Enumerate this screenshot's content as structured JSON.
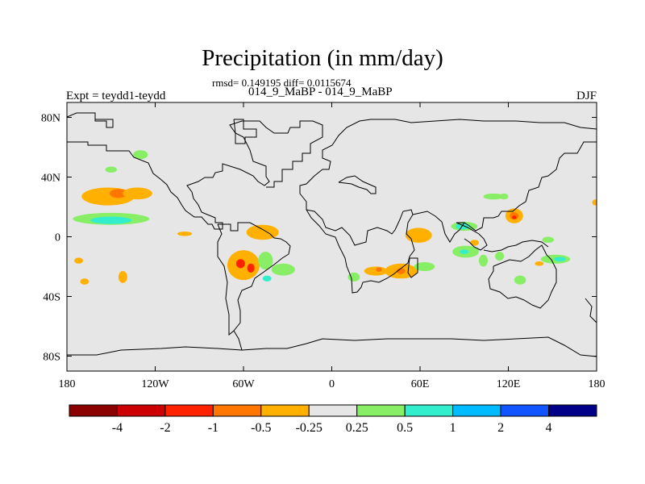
{
  "title": "Precipitation (in mm/day)",
  "stats": "rmsd= 0.149195 diff= 0.0115674",
  "subtitle": "014_9_MaBP - 014_9_MaBP",
  "left_label": "Expt = teydd1-teydd",
  "right_label": "DJF",
  "colors": {
    "background": "#e6e6e6",
    "coastline": "#000000"
  },
  "chart_data": {
    "type": "contour-map",
    "variable": "Precipitation difference",
    "units": "mm/day",
    "season": "DJF",
    "rmsd": 0.149195,
    "diff": 0.0115674,
    "x_range": [
      -180,
      180
    ],
    "y_range": [
      -90,
      90
    ],
    "x_ticks": [
      {
        "value": -180,
        "label": "180"
      },
      {
        "value": -120,
        "label": "120W"
      },
      {
        "value": -60,
        "label": "60W"
      },
      {
        "value": 0,
        "label": "0"
      },
      {
        "value": 60,
        "label": "60E"
      },
      {
        "value": 120,
        "label": "120E"
      },
      {
        "value": 180,
        "label": "180"
      }
    ],
    "y_ticks": [
      {
        "value": 80,
        "label": "80N"
      },
      {
        "value": 40,
        "label": "40N"
      },
      {
        "value": 0,
        "label": "0"
      },
      {
        "value": -40,
        "label": "40S"
      },
      {
        "value": -80,
        "label": "80S"
      }
    ],
    "colorbar": {
      "colors": [
        "#8b0000",
        "#cc0000",
        "#ff2200",
        "#ff7700",
        "#ffb000",
        "#e6e6e6",
        "#88ee66",
        "#33eecc",
        "#00bbff",
        "#1155ff",
        "#000088"
      ],
      "labels": [
        "-4",
        "-2",
        "-1",
        "-0.5",
        "-0.25",
        "0.25",
        "0.5",
        "1",
        "2",
        "4"
      ]
    },
    "regions": [
      {
        "level": "-0.25",
        "color": "#ffb000",
        "lon": -152,
        "lat": 27,
        "rlon": 18,
        "rlat": 6
      },
      {
        "level": "-0.5",
        "color": "#ff7700",
        "lon": -145,
        "lat": 29,
        "rlon": 6,
        "rlat": 3
      },
      {
        "level": "-0.25",
        "color": "#ffb000",
        "lon": -132,
        "lat": 29,
        "rlon": 10,
        "rlat": 4
      },
      {
        "level": "0.25",
        "color": "#88ee66",
        "lon": -150,
        "lat": 12,
        "rlon": 26,
        "rlat": 4
      },
      {
        "level": "0.5",
        "color": "#33eecc",
        "lon": -150,
        "lat": 11,
        "rlon": 14,
        "rlat": 2.5
      },
      {
        "level": "0.25",
        "color": "#88ee66",
        "lon": -130,
        "lat": 55,
        "rlon": 5,
        "rlat": 3
      },
      {
        "level": "0.25",
        "color": "#88ee66",
        "lon": -150,
        "lat": 45,
        "rlon": 4,
        "rlat": 2
      },
      {
        "level": "-0.25",
        "color": "#ffb000",
        "lon": -100,
        "lat": 2,
        "rlon": 5,
        "rlat": 1.5
      },
      {
        "level": "-0.25",
        "color": "#ffb000",
        "lon": -172,
        "lat": -16,
        "rlon": 3,
        "rlat": 2
      },
      {
        "level": "-0.25",
        "color": "#ffb000",
        "lon": -168,
        "lat": -30,
        "rlon": 3,
        "rlat": 2
      },
      {
        "level": "-0.25",
        "color": "#ffb000",
        "lon": -142,
        "lat": -27,
        "rlon": 3,
        "rlat": 4
      },
      {
        "level": "-0.25",
        "color": "#ffb000",
        "lon": -47,
        "lat": 3,
        "rlon": 11,
        "rlat": 5
      },
      {
        "level": "-0.25",
        "color": "#ffb000",
        "lon": -60,
        "lat": -19,
        "rlon": 11,
        "rlat": 10
      },
      {
        "level": "-1",
        "color": "#ff2200",
        "lon": -62,
        "lat": -18,
        "rlon": 3,
        "rlat": 3
      },
      {
        "level": "-1",
        "color": "#ff2200",
        "lon": -55,
        "lat": -21,
        "rlon": 2.5,
        "rlat": 3
      },
      {
        "level": "0.25",
        "color": "#88ee66",
        "lon": -45,
        "lat": -16,
        "rlon": 5,
        "rlat": 6
      },
      {
        "level": "0.25",
        "color": "#88ee66",
        "lon": -33,
        "lat": -22,
        "rlon": 8,
        "rlat": 4
      },
      {
        "level": "0.5",
        "color": "#33eecc",
        "lon": -44,
        "lat": -28,
        "rlon": 3,
        "rlat": 2
      },
      {
        "level": "-0.25",
        "color": "#ffb000",
        "lon": 59,
        "lat": 1,
        "rlon": 9,
        "rlat": 5
      },
      {
        "level": "-0.25",
        "color": "#ffb000",
        "lon": 47,
        "lat": -23,
        "rlon": 11,
        "rlat": 5
      },
      {
        "level": "-0.25",
        "color": "#ffb000",
        "lon": 30,
        "lat": -23,
        "rlon": 8,
        "rlat": 3
      },
      {
        "level": "-0.5",
        "color": "#ff7700",
        "lon": 47,
        "lat": -23,
        "rlon": 3,
        "rlat": 2
      },
      {
        "level": "-0.5",
        "color": "#ff7700",
        "lon": 32,
        "lat": -22,
        "rlon": 2,
        "rlat": 1.5
      },
      {
        "level": "0.25",
        "color": "#88ee66",
        "lon": 63,
        "lat": -20,
        "rlon": 7,
        "rlat": 3
      },
      {
        "level": "0.25",
        "color": "#88ee66",
        "lon": 15,
        "lat": -27,
        "rlon": 4,
        "rlat": 3
      },
      {
        "level": "0.25",
        "color": "#88ee66",
        "lon": 90,
        "lat": 7,
        "rlon": 9,
        "rlat": 3
      },
      {
        "level": "0.5",
        "color": "#33eecc",
        "lon": 89,
        "lat": 7,
        "rlon": 5,
        "rlat": 2
      },
      {
        "level": "0.25",
        "color": "#88ee66",
        "lon": 91,
        "lat": -10,
        "rlon": 9,
        "rlat": 4
      },
      {
        "level": "0.5",
        "color": "#33eecc",
        "lon": 90,
        "lat": -10,
        "rlon": 3,
        "rlat": 1.5
      },
      {
        "level": "0.25",
        "color": "#88ee66",
        "lon": 117,
        "lat": 27,
        "rlon": 3,
        "rlat": 2
      },
      {
        "level": "0.25",
        "color": "#88ee66",
        "lon": 103,
        "lat": -16,
        "rlon": 3,
        "rlat": 4
      },
      {
        "level": "0.25",
        "color": "#88ee66",
        "lon": 114,
        "lat": -13,
        "rlon": 3,
        "rlat": 3
      },
      {
        "level": "0.25",
        "color": "#88ee66",
        "lon": 128,
        "lat": -29,
        "rlon": 4,
        "rlat": 3
      },
      {
        "level": "0.25",
        "color": "#88ee66",
        "lon": 152,
        "lat": -15,
        "rlon": 10,
        "rlat": 3
      },
      {
        "level": "0.5",
        "color": "#33eecc",
        "lon": 155,
        "lat": -15,
        "rlon": 4,
        "rlat": 1.5
      },
      {
        "level": "0.25",
        "color": "#88ee66",
        "lon": 147,
        "lat": -2,
        "rlon": 4,
        "rlat": 2
      },
      {
        "level": "-0.25",
        "color": "#ffb000",
        "lon": 124,
        "lat": 14,
        "rlon": 6,
        "rlat": 5
      },
      {
        "level": "-0.5",
        "color": "#ff7700",
        "lon": 124,
        "lat": 14,
        "rlon": 3,
        "rlat": 2.5
      },
      {
        "level": "-1",
        "color": "#ff2200",
        "lon": 124,
        "lat": 13,
        "rlon": 1.5,
        "rlat": 1.2
      },
      {
        "level": "0.25",
        "color": "#88ee66",
        "lon": 110,
        "lat": 27,
        "rlon": 7,
        "rlat": 2
      },
      {
        "level": "-0.25",
        "color": "#ffb000",
        "lon": 97,
        "lat": -4,
        "rlon": 3,
        "rlat": 2
      },
      {
        "level": "-0.25",
        "color": "#ffb000",
        "lon": 141,
        "lat": -18,
        "rlon": 3,
        "rlat": 1.5
      },
      {
        "level": "-0.25",
        "color": "#ffb000",
        "lon": 179,
        "lat": 23,
        "rlon": 2,
        "rlat": 2
      }
    ]
  }
}
